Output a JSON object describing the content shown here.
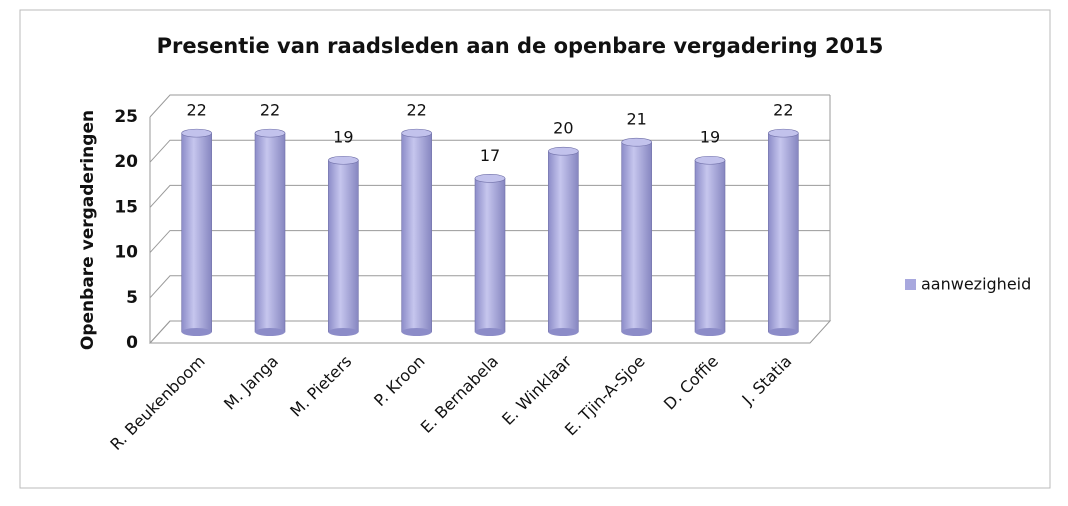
{
  "chart_data": {
    "type": "bar",
    "title": "Presentie van raadsleden aan de openbare vergadering 2015",
    "y_label": "Openbare vergaderingen",
    "categories": [
      "R. Beukenboom",
      "M. Janga",
      "M. Pieters",
      "P. Kroon",
      "E. Bernabela",
      "E. Winklaar",
      "E. Tjin-A-Sjoe",
      "D. Coffie",
      "J. Statia"
    ],
    "series": [
      {
        "name": "aanwezigheid",
        "color": "#a8a8de",
        "values": [
          22,
          22,
          19,
          22,
          17,
          20,
          21,
          19,
          22
        ]
      }
    ],
    "ylim": [
      0,
      25
    ],
    "yticks": [
      0,
      5,
      10,
      15,
      20,
      25
    ],
    "grid": true,
    "legend": "right"
  }
}
